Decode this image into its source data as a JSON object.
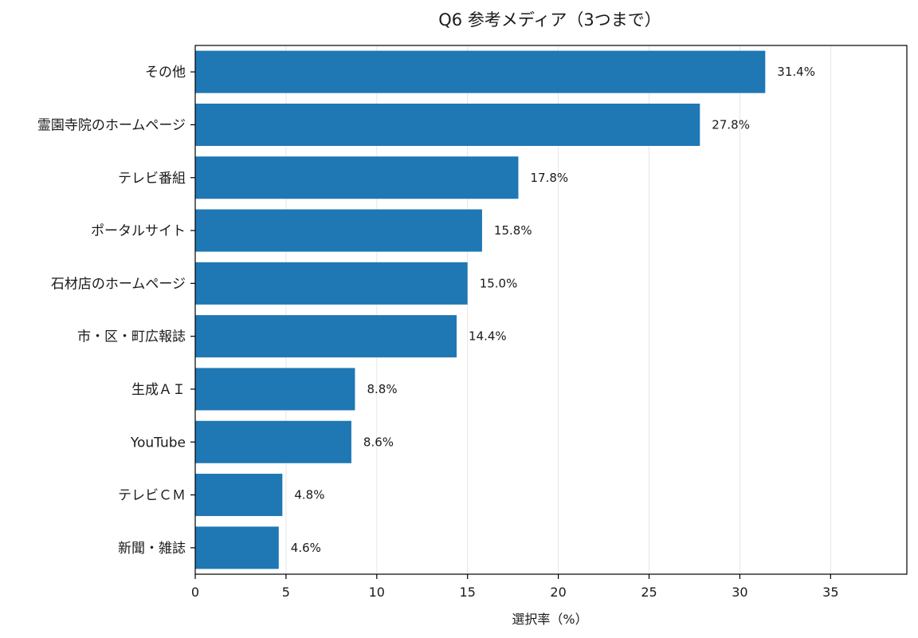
{
  "chart_data": {
    "type": "bar",
    "orientation": "horizontal",
    "title": "Q6 参考メディア（3つまで）",
    "xlabel": "選択率（%）",
    "ylabel": "",
    "categories": [
      "その他",
      "霊園寺院のホームページ",
      "テレビ番組",
      "ポータルサイト",
      "石材店のホームページ",
      "市・区・町広報誌",
      "生成ＡＩ",
      "YouTube",
      "テレビＣＭ",
      "新聞・雑誌"
    ],
    "values": [
      31.4,
      27.8,
      17.8,
      15.8,
      15.0,
      14.4,
      8.8,
      8.6,
      4.8,
      4.6
    ],
    "value_labels": [
      "31.4%",
      "27.8%",
      "17.8%",
      "15.8%",
      "15.0%",
      "14.4%",
      "8.8%",
      "8.6%",
      "4.8%",
      "4.6%"
    ],
    "xlim": [
      0,
      39.2
    ],
    "xticks": [
      0,
      5,
      10,
      15,
      20,
      25,
      30,
      35
    ],
    "xtick_labels": [
      "0",
      "5",
      "10",
      "15",
      "20",
      "25",
      "30",
      "35"
    ],
    "grid": "vertical",
    "legend": "none",
    "bar_color": "#1f77b4",
    "grid_color": "#e6e6e6",
    "axis_color": "#000000"
  }
}
